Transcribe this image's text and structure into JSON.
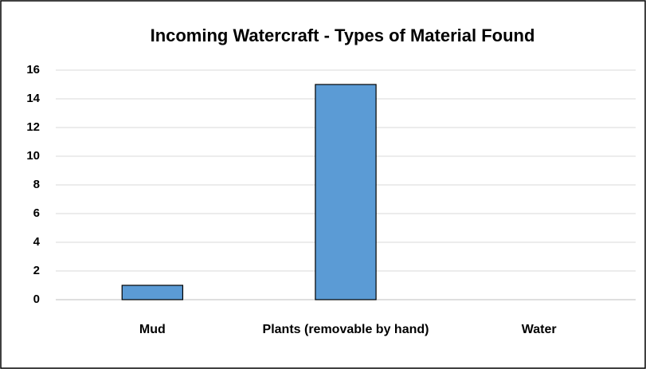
{
  "chart_data": {
    "type": "bar",
    "title": "Incoming Watercraft - Types of Material Found",
    "categories": [
      "Mud",
      "Plants (removable by hand)",
      "Water"
    ],
    "values": [
      1,
      15,
      0
    ],
    "color": "#5b9bd5",
    "ylim": [
      0,
      16
    ],
    "yticks": [
      0,
      2,
      4,
      6,
      8,
      10,
      12,
      14,
      16
    ],
    "grid": true
  }
}
